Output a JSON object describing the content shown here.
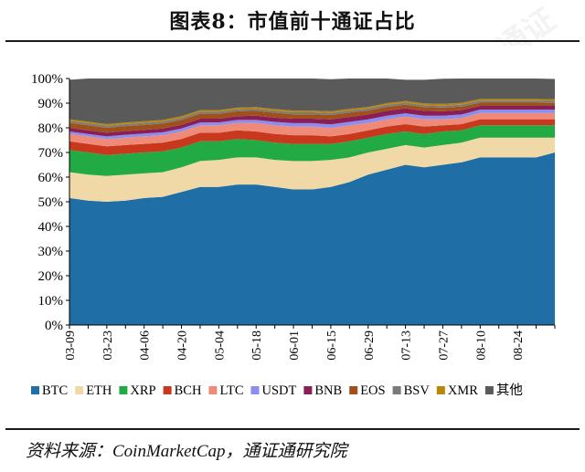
{
  "title": "图表8：市值前十通证占比",
  "source": "资料来源：CoinMarketCap，通证通研究院",
  "chart_data": {
    "type": "area",
    "stacked": true,
    "percent": true,
    "ylim": [
      0,
      100
    ],
    "yticks": [
      "0%",
      "10%",
      "20%",
      "30%",
      "40%",
      "50%",
      "60%",
      "70%",
      "80%",
      "90%",
      "100%"
    ],
    "x": [
      "03-09",
      "03-16",
      "03-23",
      "03-30",
      "04-06",
      "04-13",
      "04-20",
      "04-27",
      "05-04",
      "05-11",
      "05-18",
      "05-25",
      "06-01",
      "06-08",
      "06-15",
      "06-22",
      "06-29",
      "07-06",
      "07-13",
      "07-20",
      "07-27",
      "08-03",
      "08-10",
      "08-17",
      "08-24",
      "08-31",
      "09-05"
    ],
    "xticks": [
      "03-09",
      "03-23",
      "04-06",
      "04-20",
      "05-04",
      "05-18",
      "06-01",
      "06-15",
      "06-29",
      "07-13",
      "07-27",
      "08-10",
      "08-24"
    ],
    "legend_position": "bottom",
    "series": [
      {
        "name": "BTC",
        "color": "#1f6fa6",
        "values": [
          51.5,
          50.5,
          50,
          50.5,
          51.5,
          52,
          54,
          56,
          56,
          57,
          57,
          56,
          55,
          55,
          56,
          58,
          61,
          63,
          65,
          64,
          65,
          66,
          68,
          68,
          68,
          68,
          70
        ]
      },
      {
        "name": "ETH",
        "color": "#f0d9a6",
        "values": [
          10.5,
          10.5,
          10.5,
          10.5,
          10,
          10,
          10,
          10.5,
          11,
          11,
          11,
          11,
          11.5,
          11.5,
          11,
          10,
          9,
          8.5,
          8,
          8,
          8,
          8,
          8,
          8,
          8,
          8,
          6
        ]
      },
      {
        "name": "XRP",
        "color": "#22aa44",
        "values": [
          9,
          9,
          8.5,
          8.5,
          8.5,
          8.5,
          8,
          8,
          7.5,
          7.5,
          7,
          7,
          7,
          7,
          6.5,
          6.5,
          6,
          6,
          5.5,
          5.5,
          5.5,
          5,
          5,
          5,
          5,
          5,
          5
        ]
      },
      {
        "name": "BCH",
        "color": "#c7381c",
        "values": [
          3.5,
          3.5,
          3.5,
          3.5,
          3.5,
          3.5,
          3.5,
          3.5,
          3.5,
          3.5,
          3.5,
          3.5,
          3.5,
          3.5,
          3,
          3,
          3,
          3,
          3,
          3,
          2.5,
          2.5,
          2.5,
          2.5,
          2.5,
          2.5,
          2.5
        ]
      },
      {
        "name": "LTC",
        "color": "#f08a78",
        "values": [
          3,
          3,
          3,
          3,
          3,
          3,
          3,
          3,
          3,
          3,
          3.5,
          3.5,
          3.5,
          3.5,
          3.5,
          3.5,
          3,
          3,
          3,
          3,
          2.5,
          2.5,
          2.5,
          2.5,
          2.5,
          2.5,
          2.5
        ]
      },
      {
        "name": "USDT",
        "color": "#8a8ef0",
        "values": [
          1,
          1,
          1,
          1.2,
          1.2,
          1.2,
          1.2,
          1.2,
          1.2,
          1.2,
          1.2,
          1.4,
          1.4,
          1.4,
          1.4,
          1.4,
          1.4,
          1.4,
          1.4,
          1.4,
          1.4,
          1.4,
          1.4,
          1.4,
          1.4,
          1.4,
          1.4
        ]
      },
      {
        "name": "BNB",
        "color": "#8b1d57",
        "values": [
          1.5,
          1.5,
          1.5,
          1.5,
          1.5,
          1.5,
          1.5,
          1.5,
          1.5,
          1.5,
          1.7,
          1.7,
          1.8,
          1.8,
          2,
          2,
          2,
          2,
          2,
          2,
          1.8,
          1.8,
          1.5,
          1.5,
          1.5,
          1.5,
          1.5
        ]
      },
      {
        "name": "EOS",
        "color": "#a0511a",
        "values": [
          2,
          2,
          2,
          2,
          2,
          2,
          2,
          2,
          2,
          2,
          2,
          2,
          1.8,
          1.8,
          1.8,
          1.8,
          1.6,
          1.6,
          1.5,
          1.5,
          1.5,
          1.4,
          1.3,
          1.3,
          1.3,
          1.3,
          1.2
        ]
      },
      {
        "name": "BSV",
        "color": "#7a7a7a",
        "values": [
          0.8,
          0.8,
          0.8,
          0.8,
          0.8,
          0.8,
          0.8,
          0.8,
          0.8,
          0.8,
          0.8,
          0.8,
          0.8,
          0.8,
          0.8,
          0.8,
          0.8,
          0.8,
          0.8,
          0.8,
          0.8,
          0.8,
          0.8,
          0.8,
          0.8,
          0.8,
          0.8
        ]
      },
      {
        "name": "XMR",
        "color": "#b8860b",
        "values": [
          0.7,
          0.7,
          0.7,
          0.7,
          0.7,
          0.7,
          0.7,
          0.7,
          0.7,
          0.7,
          0.7,
          0.7,
          0.7,
          0.7,
          0.7,
          0.7,
          0.7,
          0.7,
          0.7,
          0.7,
          0.7,
          0.7,
          0.7,
          0.7,
          0.7,
          0.7,
          0.7
        ]
      },
      {
        "name": "其他",
        "color": "#5a5a5a",
        "values": [
          16,
          17.5,
          18.5,
          18.3,
          17.8,
          17.8,
          16.3,
          13.8,
          13.8,
          12.8,
          12.6,
          12.4,
          13,
          13,
          13,
          12.3,
          11.5,
          10.2,
          8.6,
          9.6,
          10.2,
          10.1,
          8.5,
          8.5,
          8.5,
          8.5,
          8.2
        ]
      }
    ]
  }
}
